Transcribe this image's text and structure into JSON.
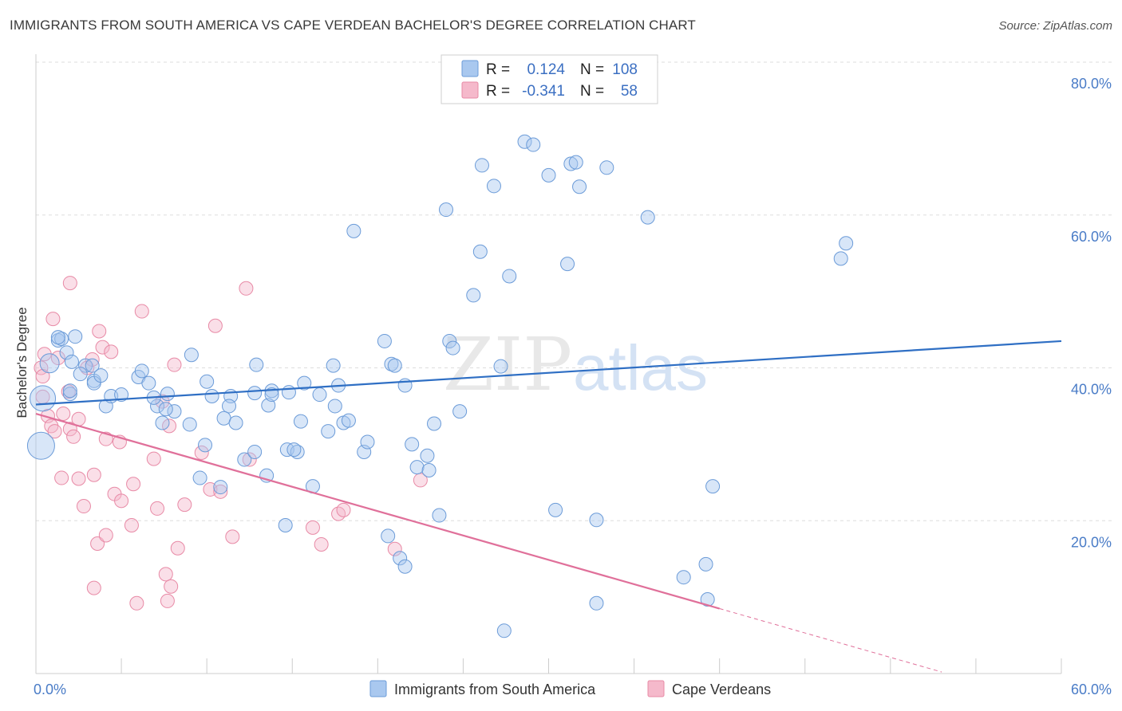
{
  "title": "IMMIGRANTS FROM SOUTH AMERICA VS CAPE VERDEAN BACHELOR'S DEGREE CORRELATION CHART",
  "source": "Source: ZipAtlas.com",
  "watermark": {
    "zip": "ZIP",
    "atlas": "atlas"
  },
  "colors": {
    "blue_fill": "#a9c8ef",
    "blue_stroke": "#6b9bd8",
    "blue_line": "#2f6fc4",
    "pink_fill": "#f5b9cb",
    "pink_stroke": "#e88aa6",
    "pink_line": "#e0709a"
  },
  "legend": {
    "r_label": "R =",
    "n_label": "N =",
    "blue": {
      "r": "0.124",
      "n": "108"
    },
    "pink": {
      "r": "-0.341",
      "n": "58"
    }
  },
  "bottom_legend": {
    "blue": "Immigrants from South America",
    "pink": "Cape Verdeans"
  },
  "chart_data": {
    "type": "scatter",
    "xlabel": "",
    "ylabel": "Bachelor's Degree",
    "xlim": [
      0,
      60
    ],
    "ylim": [
      0,
      80
    ],
    "x_tick_labels": {
      "left": "0.0%",
      "right": "60.0%"
    },
    "y_ticks": [
      {
        "value": 20,
        "label": "20.0%"
      },
      {
        "value": 40,
        "label": "40.0%"
      },
      {
        "value": 60,
        "label": "60.0%"
      },
      {
        "value": 80,
        "label": "80.0%"
      }
    ],
    "grid": true,
    "legend_position": "top-center",
    "series": [
      {
        "name": "Immigrants from South America",
        "color": "#a9c8ef",
        "trend": {
          "x": [
            0,
            60
          ],
          "y": [
            35.2,
            43.5
          ]
        },
        "points": [
          [
            0.4,
            36.0
          ],
          [
            0.3,
            29.8
          ],
          [
            0.8,
            40.6
          ],
          [
            1.3,
            43.6
          ],
          [
            1.5,
            43.8
          ],
          [
            2.3,
            44.1
          ],
          [
            1.8,
            42.0
          ],
          [
            2.1,
            40.8
          ],
          [
            2.9,
            40.3
          ],
          [
            2.6,
            39.2
          ],
          [
            3.3,
            40.3
          ],
          [
            3.4,
            38.3
          ],
          [
            4.1,
            35.0
          ],
          [
            4.4,
            36.3
          ],
          [
            5.0,
            36.5
          ],
          [
            2.0,
            36.6
          ],
          [
            3.4,
            38.0
          ],
          [
            6.0,
            38.8
          ],
          [
            6.6,
            38.0
          ],
          [
            7.1,
            35.0
          ],
          [
            7.7,
            36.6
          ],
          [
            8.1,
            34.3
          ],
          [
            7.6,
            34.6
          ],
          [
            9.1,
            41.7
          ],
          [
            10.0,
            38.2
          ],
          [
            10.3,
            36.3
          ],
          [
            11.4,
            36.3
          ],
          [
            11.3,
            35.0
          ],
          [
            11.0,
            33.4
          ],
          [
            11.7,
            32.8
          ],
          [
            12.9,
            40.4
          ],
          [
            12.8,
            36.7
          ],
          [
            12.2,
            28.0
          ],
          [
            12.8,
            29.0
          ],
          [
            13.5,
            25.9
          ],
          [
            13.6,
            35.1
          ],
          [
            13.8,
            37.0
          ],
          [
            13.8,
            36.5
          ],
          [
            14.8,
            36.8
          ],
          [
            15.5,
            33.0
          ],
          [
            14.7,
            29.3
          ],
          [
            15.3,
            29.0
          ],
          [
            15.7,
            38.0
          ],
          [
            16.6,
            36.5
          ],
          [
            17.1,
            31.7
          ],
          [
            17.5,
            35.0
          ],
          [
            17.4,
            40.3
          ],
          [
            17.7,
            37.7
          ],
          [
            18.0,
            32.8
          ],
          [
            18.3,
            33.1
          ],
          [
            19.2,
            29.0
          ],
          [
            19.4,
            30.3
          ],
          [
            20.4,
            43.5
          ],
          [
            20.8,
            40.5
          ],
          [
            21.0,
            40.3
          ],
          [
            21.6,
            37.7
          ],
          [
            22.0,
            30.0
          ],
          [
            22.3,
            27.0
          ],
          [
            22.9,
            28.5
          ],
          [
            23.0,
            26.6
          ],
          [
            23.3,
            32.7
          ],
          [
            24.2,
            43.5
          ],
          [
            24.4,
            42.6
          ],
          [
            24.8,
            34.3
          ],
          [
            23.6,
            20.7
          ],
          [
            20.6,
            18.0
          ],
          [
            21.3,
            15.1
          ],
          [
            21.6,
            14.0
          ],
          [
            16.2,
            24.5
          ],
          [
            14.6,
            19.4
          ],
          [
            15.1,
            29.3
          ],
          [
            10.8,
            24.4
          ],
          [
            9.9,
            29.9
          ],
          [
            9.0,
            32.6
          ],
          [
            9.6,
            25.6
          ],
          [
            6.9,
            36.1
          ],
          [
            7.4,
            32.8
          ],
          [
            6.2,
            39.6
          ],
          [
            2.0,
            37.0
          ],
          [
            3.8,
            39.0
          ],
          [
            18.6,
            57.9
          ],
          [
            24.0,
            60.7
          ],
          [
            26.1,
            66.5
          ],
          [
            26.0,
            55.2
          ],
          [
            25.6,
            49.5
          ],
          [
            27.7,
            52.0
          ],
          [
            27.2,
            40.2
          ],
          [
            26.8,
            63.8
          ],
          [
            28.6,
            69.6
          ],
          [
            29.1,
            69.2
          ],
          [
            30.0,
            65.2
          ],
          [
            31.3,
            66.7
          ],
          [
            31.6,
            66.9
          ],
          [
            31.1,
            53.6
          ],
          [
            31.8,
            63.7
          ],
          [
            33.4,
            66.2
          ],
          [
            35.8,
            59.7
          ],
          [
            27.4,
            5.6
          ],
          [
            30.4,
            21.4
          ],
          [
            32.8,
            9.2
          ],
          [
            32.8,
            20.1
          ],
          [
            37.9,
            12.6
          ],
          [
            39.2,
            14.3
          ],
          [
            39.3,
            9.7
          ],
          [
            39.6,
            24.5
          ],
          [
            47.4,
            56.3
          ],
          [
            47.1,
            54.3
          ],
          [
            1.3,
            44.0
          ]
        ]
      },
      {
        "name": "Cape Verdeans",
        "color": "#f5b9cb",
        "trend": {
          "x": [
            0,
            40
          ],
          "y": [
            34.0,
            8.5
          ]
        },
        "trend_extension": {
          "x": [
            40,
            53
          ],
          "y": [
            8.5,
            0.2
          ]
        },
        "points": [
          [
            0.3,
            40.0
          ],
          [
            0.4,
            38.9
          ],
          [
            0.5,
            41.8
          ],
          [
            0.7,
            33.7
          ],
          [
            0.9,
            32.4
          ],
          [
            1.1,
            31.7
          ],
          [
            1.3,
            41.3
          ],
          [
            1.6,
            34.0
          ],
          [
            1.9,
            36.9
          ],
          [
            2.0,
            32.0
          ],
          [
            2.2,
            31.0
          ],
          [
            2.5,
            33.3
          ],
          [
            3.0,
            40.0
          ],
          [
            3.3,
            41.1
          ],
          [
            3.7,
            44.8
          ],
          [
            3.9,
            42.7
          ],
          [
            4.1,
            30.7
          ],
          [
            4.4,
            42.1
          ],
          [
            4.9,
            30.3
          ],
          [
            1.0,
            46.4
          ],
          [
            2.0,
            51.1
          ],
          [
            6.2,
            47.4
          ],
          [
            8.1,
            40.4
          ],
          [
            10.5,
            45.5
          ],
          [
            12.3,
            50.4
          ],
          [
            7.4,
            35.6
          ],
          [
            7.8,
            32.4
          ],
          [
            6.9,
            28.1
          ],
          [
            9.7,
            28.9
          ],
          [
            10.2,
            24.1
          ],
          [
            10.8,
            23.8
          ],
          [
            1.5,
            25.6
          ],
          [
            2.5,
            25.5
          ],
          [
            3.4,
            26.0
          ],
          [
            3.6,
            17.0
          ],
          [
            3.4,
            11.2
          ],
          [
            4.1,
            18.1
          ],
          [
            4.6,
            23.5
          ],
          [
            5.0,
            22.6
          ],
          [
            5.6,
            19.4
          ],
          [
            5.7,
            24.8
          ],
          [
            7.1,
            21.6
          ],
          [
            7.6,
            13.0
          ],
          [
            7.9,
            11.4
          ],
          [
            8.3,
            16.4
          ],
          [
            8.7,
            22.1
          ],
          [
            11.5,
            17.9
          ],
          [
            16.2,
            19.1
          ],
          [
            16.7,
            16.9
          ],
          [
            17.7,
            20.9
          ],
          [
            18.0,
            21.4
          ],
          [
            21.0,
            16.3
          ],
          [
            22.5,
            25.3
          ],
          [
            7.7,
            9.5
          ],
          [
            5.9,
            9.2
          ],
          [
            2.8,
            21.9
          ],
          [
            0.4,
            36.2
          ],
          [
            12.5,
            28.0
          ]
        ]
      }
    ]
  }
}
